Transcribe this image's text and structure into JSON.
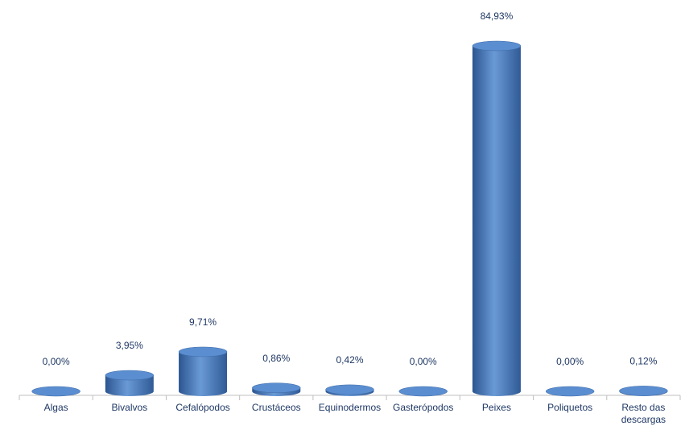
{
  "chart_data": {
    "type": "bar",
    "categories": [
      "Algas",
      "Bivalvos",
      "Cefalópodos",
      "Crustáceos",
      "Equinodermos",
      "Gasterópodos",
      "Peixes",
      "Poliquetos",
      "Resto das descargas"
    ],
    "values": [
      0,
      3.95,
      9.71,
      0.86,
      0.42,
      0,
      84.93,
      0,
      0.12
    ],
    "value_labels": [
      "0,00%",
      "3,95%",
      "9,71%",
      "0,86%",
      "0,42%",
      "0,00%",
      "84,93%",
      "0,00%",
      "0,12%"
    ],
    "color": "#4f81bd"
  }
}
